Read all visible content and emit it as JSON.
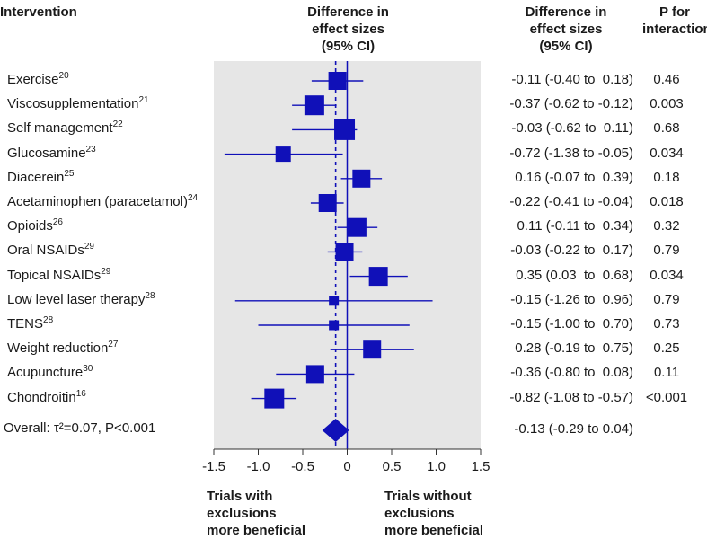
{
  "headers": {
    "intervention": "Intervention",
    "effect_col": [
      "Difference in",
      "effect sizes",
      "(95% CI)"
    ],
    "ci_col": [
      "Difference in",
      "effect sizes",
      "(95% CI)"
    ],
    "p_col": [
      "P for",
      "interaction"
    ]
  },
  "footer": {
    "left": [
      "Trials with",
      "exclusions",
      "more beneficial"
    ],
    "right": [
      "Trials without",
      "exclusions",
      "more beneficial"
    ]
  },
  "chart_data": {
    "type": "forest",
    "xlim": [
      -1.5,
      1.5
    ],
    "ticks": [
      -1.5,
      -1.0,
      -0.5,
      0,
      0.5,
      1.0,
      1.5
    ],
    "tick_labels": [
      "-1.5",
      "-1.0",
      "-0.5",
      "0",
      "0.5",
      "1.0",
      "1.5"
    ],
    "colors": {
      "marker": "#1010b8",
      "panel": "#e6e6e6",
      "ci_line": "#1010b8"
    },
    "studies": [
      {
        "name": "Exercise",
        "ref": "20",
        "est": -0.11,
        "lo": -0.4,
        "hi": 0.18,
        "ci_text": "-0.11 (-0.40 to  0.18)",
        "p": "0.46",
        "size": 20
      },
      {
        "name": "Viscosupplementation",
        "ref": "21",
        "est": -0.37,
        "lo": -0.62,
        "hi": -0.12,
        "ci_text": "-0.37 (-0.62 to -0.12)",
        "p": "0.003",
        "size": 22
      },
      {
        "name": "Self management",
        "ref": "22",
        "est": -0.03,
        "lo": -0.62,
        "hi": 0.11,
        "ci_text": "-0.03 (-0.62 to  0.11)",
        "p": "0.68",
        "size": 23
      },
      {
        "name": "Glucosamine",
        "ref": "23",
        "est": -0.72,
        "lo": -1.38,
        "hi": -0.05,
        "ci_text": "-0.72 (-1.38 to -0.05)",
        "p": "0.034",
        "size": 17
      },
      {
        "name": "Diacerein",
        "ref": "25",
        "est": 0.16,
        "lo": -0.07,
        "hi": 0.39,
        "ci_text": "0.16 (-0.07 to  0.39)",
        "p": "0.18",
        "size": 20
      },
      {
        "name": "Acetaminophen (paracetamol)",
        "ref": "24",
        "est": -0.22,
        "lo": -0.41,
        "hi": -0.04,
        "ci_text": "-0.22 (-0.41 to -0.04)",
        "p": "0.018",
        "size": 20
      },
      {
        "name": "Opioids",
        "ref": "26",
        "est": 0.11,
        "lo": -0.11,
        "hi": 0.34,
        "ci_text": "0.11 (-0.11 to  0.34)",
        "p": "0.32",
        "size": 21
      },
      {
        "name": "Oral NSAIDs",
        "ref": "29",
        "est": -0.03,
        "lo": -0.22,
        "hi": 0.17,
        "ci_text": "-0.03 (-0.22 to  0.17)",
        "p": "0.79",
        "size": 20
      },
      {
        "name": "Topical NSAIDs",
        "ref": "29",
        "est": 0.35,
        "lo": 0.03,
        "hi": 0.68,
        "ci_text": "0.35 (0.03  to  0.68)",
        "p": "0.034",
        "size": 21
      },
      {
        "name": "Low level laser therapy",
        "ref": "28",
        "est": -0.15,
        "lo": -1.26,
        "hi": 0.96,
        "ci_text": "-0.15 (-1.26 to  0.96)",
        "p": "0.79",
        "size": 11
      },
      {
        "name": "TENS",
        "ref": "28",
        "est": -0.15,
        "lo": -1.0,
        "hi": 0.7,
        "ci_text": "-0.15 (-1.00 to  0.70)",
        "p": "0.73",
        "size": 11
      },
      {
        "name": "Weight reduction",
        "ref": "27",
        "est": 0.28,
        "lo": -0.19,
        "hi": 0.75,
        "ci_text": "0.28 (-0.19 to  0.75)",
        "p": "0.25",
        "size": 20
      },
      {
        "name": "Acupuncture",
        "ref": "30",
        "est": -0.36,
        "lo": -0.8,
        "hi": 0.08,
        "ci_text": "-0.36 (-0.80 to  0.08)",
        "p": "0.11",
        "size": 20
      },
      {
        "name": "Chondroitin",
        "ref": "16",
        "est": -0.82,
        "lo": -1.08,
        "hi": -0.57,
        "ci_text": "-0.82 (-1.08 to -0.57)",
        "p": "<0.001",
        "size": 22
      }
    ],
    "overall": {
      "label": "Overall: τ²=0.07, P<0.001",
      "est": -0.13,
      "lo": -0.29,
      "hi": 0.04,
      "ci_text": "-0.13 (-0.29 to 0.04)"
    }
  }
}
